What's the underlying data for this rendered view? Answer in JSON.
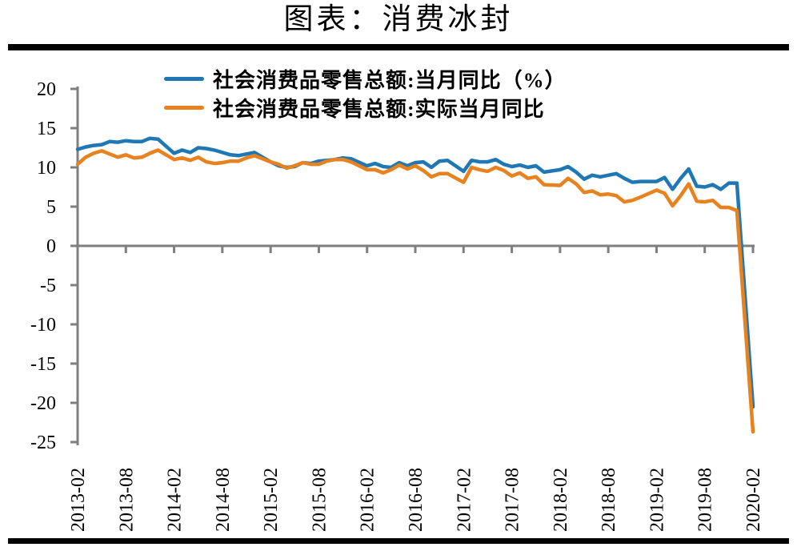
{
  "title": "图表：消费冰封",
  "colors": {
    "series_nominal": "#1F77B4",
    "series_real": "#E8821E",
    "axis": "#7F7F7F",
    "rule": "#000000",
    "text": "#000000"
  },
  "chart_data": {
    "type": "line",
    "title": "图表：消费冰封",
    "xlabel": "",
    "ylabel": "",
    "ylim": [
      -25,
      20
    ],
    "y_ticks": [
      20,
      15,
      10,
      5,
      0,
      -5,
      -10,
      -15,
      -20,
      -25
    ],
    "x_tick_labels": [
      "2013-02",
      "2013-08",
      "2014-02",
      "2014-08",
      "2015-02",
      "2015-08",
      "2016-02",
      "2016-08",
      "2017-02",
      "2017-08",
      "2018-02",
      "2018-08",
      "2019-02",
      "2019-08",
      "2020-02"
    ],
    "grid": "zero-baseline-only",
    "legend_position": "top-inside",
    "x": [
      "2013-02",
      "2013-03",
      "2013-04",
      "2013-05",
      "2013-06",
      "2013-07",
      "2013-08",
      "2013-09",
      "2013-10",
      "2013-11",
      "2013-12",
      "2014-02",
      "2014-03",
      "2014-04",
      "2014-05",
      "2014-06",
      "2014-07",
      "2014-08",
      "2014-09",
      "2014-10",
      "2014-11",
      "2014-12",
      "2015-02",
      "2015-03",
      "2015-04",
      "2015-05",
      "2015-06",
      "2015-07",
      "2015-08",
      "2015-09",
      "2015-10",
      "2015-11",
      "2015-12",
      "2016-02",
      "2016-03",
      "2016-04",
      "2016-05",
      "2016-06",
      "2016-07",
      "2016-08",
      "2016-09",
      "2016-10",
      "2016-11",
      "2016-12",
      "2017-02",
      "2017-03",
      "2017-04",
      "2017-05",
      "2017-06",
      "2017-07",
      "2017-08",
      "2017-09",
      "2017-10",
      "2017-11",
      "2017-12",
      "2018-02",
      "2018-03",
      "2018-04",
      "2018-05",
      "2018-06",
      "2018-07",
      "2018-08",
      "2018-09",
      "2018-10",
      "2018-11",
      "2018-12",
      "2019-02",
      "2019-03",
      "2019-04",
      "2019-05",
      "2019-06",
      "2019-07",
      "2019-08",
      "2019-09",
      "2019-10",
      "2019-11",
      "2019-12",
      "2020-02"
    ],
    "series": [
      {
        "name": "社会消费品零售总额:当月同比（%）",
        "color": "#1F77B4",
        "values": [
          12.3,
          12.6,
          12.8,
          12.9,
          13.3,
          13.2,
          13.4,
          13.3,
          13.3,
          13.7,
          13.6,
          11.8,
          12.2,
          11.9,
          12.5,
          12.4,
          12.2,
          11.9,
          11.6,
          11.5,
          11.7,
          11.9,
          10.7,
          10.2,
          10.0,
          10.1,
          10.6,
          10.5,
          10.8,
          10.9,
          11.0,
          11.2,
          11.1,
          10.2,
          10.5,
          10.1,
          10.0,
          10.6,
          10.2,
          10.6,
          10.7,
          10.0,
          10.8,
          10.9,
          9.5,
          10.9,
          10.7,
          10.7,
          11.0,
          10.4,
          10.1,
          10.3,
          10.0,
          10.2,
          9.4,
          9.7,
          10.1,
          9.4,
          8.5,
          9.0,
          8.8,
          9.0,
          9.2,
          8.6,
          8.1,
          8.2,
          8.2,
          8.7,
          7.2,
          8.6,
          9.8,
          7.6,
          7.5,
          7.8,
          7.2,
          8.0,
          8.0,
          -20.5
        ]
      },
      {
        "name": "社会消费品零售总额:实际当月同比",
        "color": "#E8821E",
        "values": [
          10.4,
          11.3,
          11.8,
          12.1,
          11.7,
          11.3,
          11.6,
          11.2,
          11.3,
          11.8,
          12.2,
          11.0,
          11.2,
          10.9,
          11.3,
          10.7,
          10.5,
          10.6,
          10.8,
          10.8,
          11.2,
          11.5,
          10.7,
          10.4,
          9.9,
          10.2,
          10.6,
          10.4,
          10.4,
          10.8,
          11.0,
          11.0,
          10.7,
          9.7,
          9.7,
          9.3,
          9.7,
          10.3,
          9.8,
          10.2,
          9.6,
          8.8,
          9.2,
          9.2,
          8.1,
          10.0,
          9.7,
          9.5,
          10.0,
          9.6,
          8.9,
          9.3,
          8.6,
          8.8,
          7.8,
          7.7,
          8.6,
          7.9,
          6.8,
          7.0,
          6.5,
          6.6,
          6.4,
          5.6,
          5.8,
          6.2,
          7.1,
          6.7,
          5.1,
          6.4,
          7.9,
          5.7,
          5.6,
          5.8,
          4.9,
          4.9,
          4.5,
          -23.7
        ]
      }
    ]
  }
}
